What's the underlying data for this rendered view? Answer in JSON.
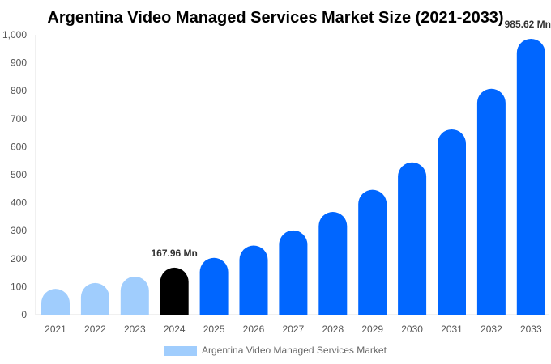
{
  "chart_data": {
    "type": "bar",
    "title": "Argentina Video Managed Services Market Size (2021-2033)",
    "categories": [
      "2021",
      "2022",
      "2023",
      "2024",
      "2025",
      "2026",
      "2027",
      "2028",
      "2029",
      "2030",
      "2031",
      "2032",
      "2033"
    ],
    "series": [
      {
        "name": "Argentina Video Managed Services Market",
        "values": [
          92,
          113,
          136,
          167.96,
          203,
          247,
          301,
          367,
          446,
          544,
          662,
          807,
          985.62
        ]
      }
    ],
    "bar_colors": [
      "#a0cdfd",
      "#a0cdfd",
      "#a0cdfd",
      "#000000",
      "#0066ff",
      "#0066ff",
      "#0066ff",
      "#0066ff",
      "#0066ff",
      "#0066ff",
      "#0066ff",
      "#0066ff",
      "#0066ff"
    ],
    "legend_color": "#a0cdfd",
    "data_labels": [
      {
        "category": "2024",
        "text": "167.96 Mn"
      },
      {
        "category": "2033",
        "text": "985.62 Mn"
      }
    ],
    "yticks": [
      "0",
      "100",
      "200",
      "300",
      "400",
      "500",
      "600",
      "700",
      "800",
      "900",
      "1,000"
    ],
    "ylim": [
      0,
      1000
    ],
    "xlabel": "",
    "ylabel": "",
    "grid": false,
    "legend_position": "bottom"
  }
}
